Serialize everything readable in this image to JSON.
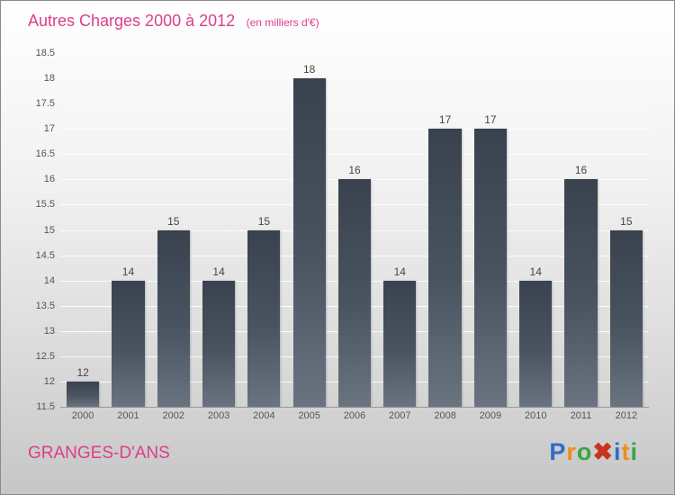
{
  "header": {
    "title": "Autres Charges 2000 à 2012",
    "subtitle": "(en milliers d'€)"
  },
  "footer": {
    "place": "GRANGES-D'ANS",
    "logo_letters": [
      {
        "ch": "P",
        "color": "#2f6cc9"
      },
      {
        "ch": "r",
        "color": "#f08c1e"
      },
      {
        "ch": "o",
        "color": "#3aa63f"
      },
      {
        "ch": "✖",
        "color": "#c8341f"
      },
      {
        "ch": "i",
        "color": "#2f6cc9"
      },
      {
        "ch": "t",
        "color": "#f08c1e"
      },
      {
        "ch": "i",
        "color": "#3aa63f"
      }
    ]
  },
  "colors": {
    "title_pink": "#de3d8a",
    "bar_dark": "#39424e",
    "bar_light": "#6a7481",
    "tick_text": "#555555",
    "gridline": "#ffffff"
  },
  "chart_data": {
    "type": "bar",
    "title": "Autres Charges 2000 à 2012",
    "subtitle": "(en milliers d'€)",
    "categories": [
      "2000",
      "2001",
      "2002",
      "2003",
      "2004",
      "2005",
      "2006",
      "2007",
      "2008",
      "2009",
      "2010",
      "2011",
      "2012"
    ],
    "values": [
      12,
      14,
      15,
      14,
      15,
      18,
      16,
      14,
      17,
      17,
      14,
      16,
      15
    ],
    "xlabel": "",
    "ylabel": "",
    "ylim": [
      11.5,
      18.5
    ],
    "ytick_step": 0.5,
    "grid": true,
    "legend": false
  }
}
